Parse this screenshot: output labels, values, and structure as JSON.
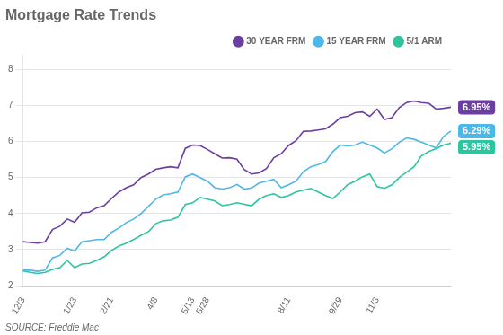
{
  "chart_data": {
    "type": "line",
    "title": "Mortgage Rate Trends",
    "source": "SOURCE: Freddie Mac",
    "categories": [
      "12/3",
      null,
      null,
      null,
      null,
      null,
      null,
      "1/23",
      null,
      null,
      null,
      null,
      "2/21",
      null,
      null,
      null,
      null,
      null,
      "4/8",
      null,
      null,
      null,
      null,
      "5/13",
      null,
      "5/28",
      null,
      null,
      null,
      null,
      null,
      null,
      null,
      null,
      null,
      null,
      "8/11",
      null,
      null,
      null,
      null,
      null,
      null,
      "9/29",
      null,
      null,
      null,
      null,
      "11/3",
      null,
      null,
      null,
      null,
      null,
      null,
      null,
      null,
      null,
      null
    ],
    "series": [
      {
        "name": "30 YEAR FRM",
        "color": "#6b3fa0",
        "values": [
          3.22,
          3.2,
          3.18,
          3.22,
          3.56,
          3.65,
          3.85,
          3.76,
          4.02,
          4.04,
          4.16,
          4.22,
          4.42,
          4.6,
          4.72,
          4.8,
          5.0,
          5.1,
          5.23,
          5.27,
          5.3,
          5.27,
          5.81,
          5.9,
          5.89,
          5.78,
          5.66,
          5.54,
          5.55,
          5.51,
          5.22,
          5.1,
          5.13,
          5.25,
          5.55,
          5.66,
          5.89,
          6.02,
          6.28,
          6.29,
          6.32,
          6.35,
          6.48,
          6.66,
          6.7,
          6.8,
          6.82,
          6.7,
          6.9,
          6.61,
          6.66,
          6.94,
          7.08,
          7.12,
          7.08,
          7.06,
          6.9,
          6.92,
          6.95
        ]
      },
      {
        "name": "15 YEAR FRM",
        "color": "#4db8e8",
        "values": [
          2.43,
          2.43,
          2.4,
          2.43,
          2.77,
          2.84,
          3.04,
          2.96,
          3.22,
          3.25,
          3.28,
          3.28,
          3.48,
          3.6,
          3.75,
          3.85,
          4.0,
          4.2,
          4.4,
          4.52,
          4.55,
          4.6,
          5.02,
          5.1,
          5.0,
          4.9,
          4.72,
          4.68,
          4.72,
          4.81,
          4.68,
          4.71,
          4.85,
          4.9,
          4.95,
          4.72,
          4.8,
          4.9,
          5.16,
          5.3,
          5.36,
          5.44,
          5.72,
          5.9,
          5.88,
          5.9,
          5.98,
          5.9,
          5.82,
          5.68,
          5.8,
          5.98,
          6.1,
          6.06,
          5.98,
          5.9,
          5.82,
          6.14,
          6.29
        ]
      },
      {
        "name": "5/1 ARM",
        "color": "#2ec4a0",
        "values": [
          2.41,
          2.37,
          2.34,
          2.37,
          2.45,
          2.5,
          2.7,
          2.5,
          2.6,
          2.62,
          2.7,
          2.8,
          2.98,
          3.1,
          3.18,
          3.28,
          3.4,
          3.5,
          3.72,
          3.8,
          3.82,
          3.9,
          4.25,
          4.3,
          4.45,
          4.4,
          4.35,
          4.22,
          4.25,
          4.3,
          4.26,
          4.22,
          4.4,
          4.5,
          4.55,
          4.45,
          4.5,
          4.6,
          4.65,
          4.7,
          4.6,
          4.5,
          4.42,
          4.6,
          4.8,
          4.9,
          5.02,
          5.1,
          4.75,
          4.7,
          4.8,
          5.0,
          5.15,
          5.3,
          5.6,
          5.72,
          5.8,
          5.9,
          5.95
        ]
      }
    ],
    "ylim": [
      2,
      8.4
    ],
    "yticks": [
      2,
      3,
      4,
      5,
      6,
      7,
      8
    ],
    "grid": "y",
    "legend": "top",
    "annotations": [
      {
        "text": "6.95%",
        "series": "30 YEAR FRM",
        "color": "#6b3fa0"
      },
      {
        "text": "6.29%",
        "series": "15 YEAR FRM",
        "color": "#4db8e8"
      },
      {
        "text": "5.95%",
        "series": "5/1 ARM",
        "color": "#2ec4a0"
      }
    ]
  }
}
